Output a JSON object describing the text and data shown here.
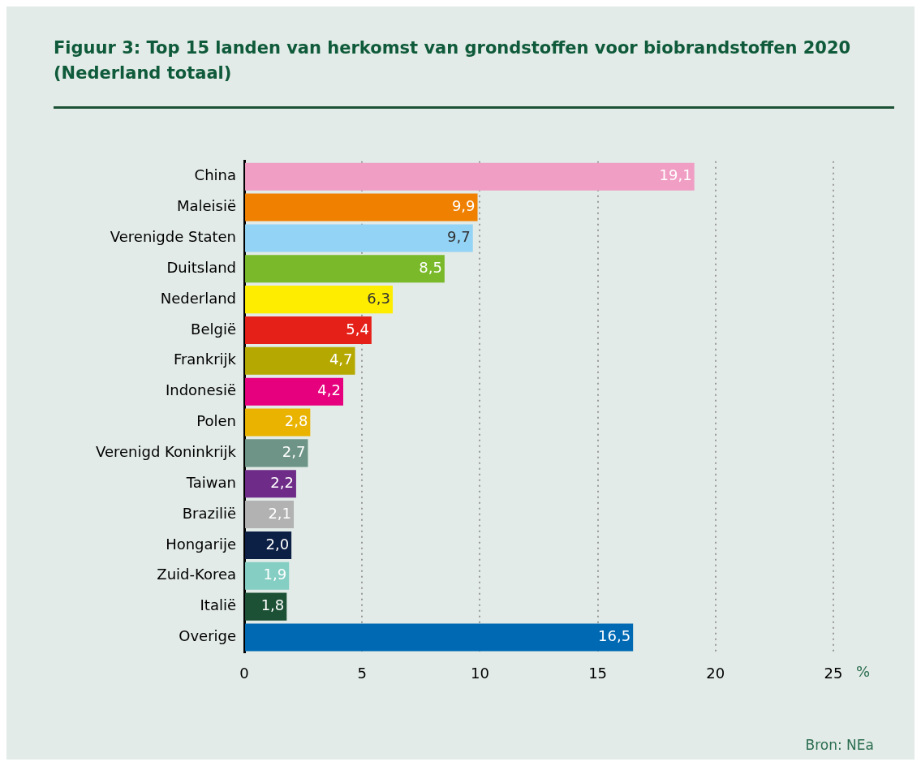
{
  "chart_data": {
    "type": "bar",
    "orientation": "horizontal",
    "title": "Figuur 3: Top 15 landen van herkomst van grondstoffen voor biobrandstoffen 2020 (Nederland totaal)",
    "xlabel": "%",
    "categories": [
      "China",
      "Maleisië",
      "Verenigde Staten",
      "Duitsland",
      "Nederland",
      "België",
      "Frankrijk",
      "Indonesië",
      "Polen",
      "Verenigd Koninkrijk",
      "Taiwan",
      "Brazilië",
      "Hongarije",
      "Zuid-Korea",
      "Italië",
      "Overige"
    ],
    "values": [
      19.1,
      9.9,
      9.7,
      8.5,
      6.3,
      5.4,
      4.7,
      4.2,
      2.8,
      2.7,
      2.2,
      2.1,
      2.0,
      1.9,
      1.8,
      16.5
    ],
    "value_labels": [
      "19,1",
      "9,9",
      "9,7",
      "8,5",
      "6,3",
      "5,4",
      "4,7",
      "4,2",
      "2,8",
      "2,7",
      "2,2",
      "2,1",
      "2,0",
      "1,9",
      "1,8",
      "16,5"
    ],
    "colors": [
      "#f09ec4",
      "#f08000",
      "#93d3f5",
      "#7ab929",
      "#ffed00",
      "#e52019",
      "#b5a800",
      "#e6007e",
      "#eab300",
      "#6d9486",
      "#6e2b87",
      "#b2b2b2",
      "#0c1f45",
      "#84cec3",
      "#1d5136",
      "#0069b4"
    ],
    "xlim": [
      0,
      25
    ],
    "xticks": [
      0,
      5,
      10,
      15,
      20,
      25
    ],
    "grid": "x",
    "legend": false,
    "annotations": [
      "Bron: NEa"
    ]
  }
}
